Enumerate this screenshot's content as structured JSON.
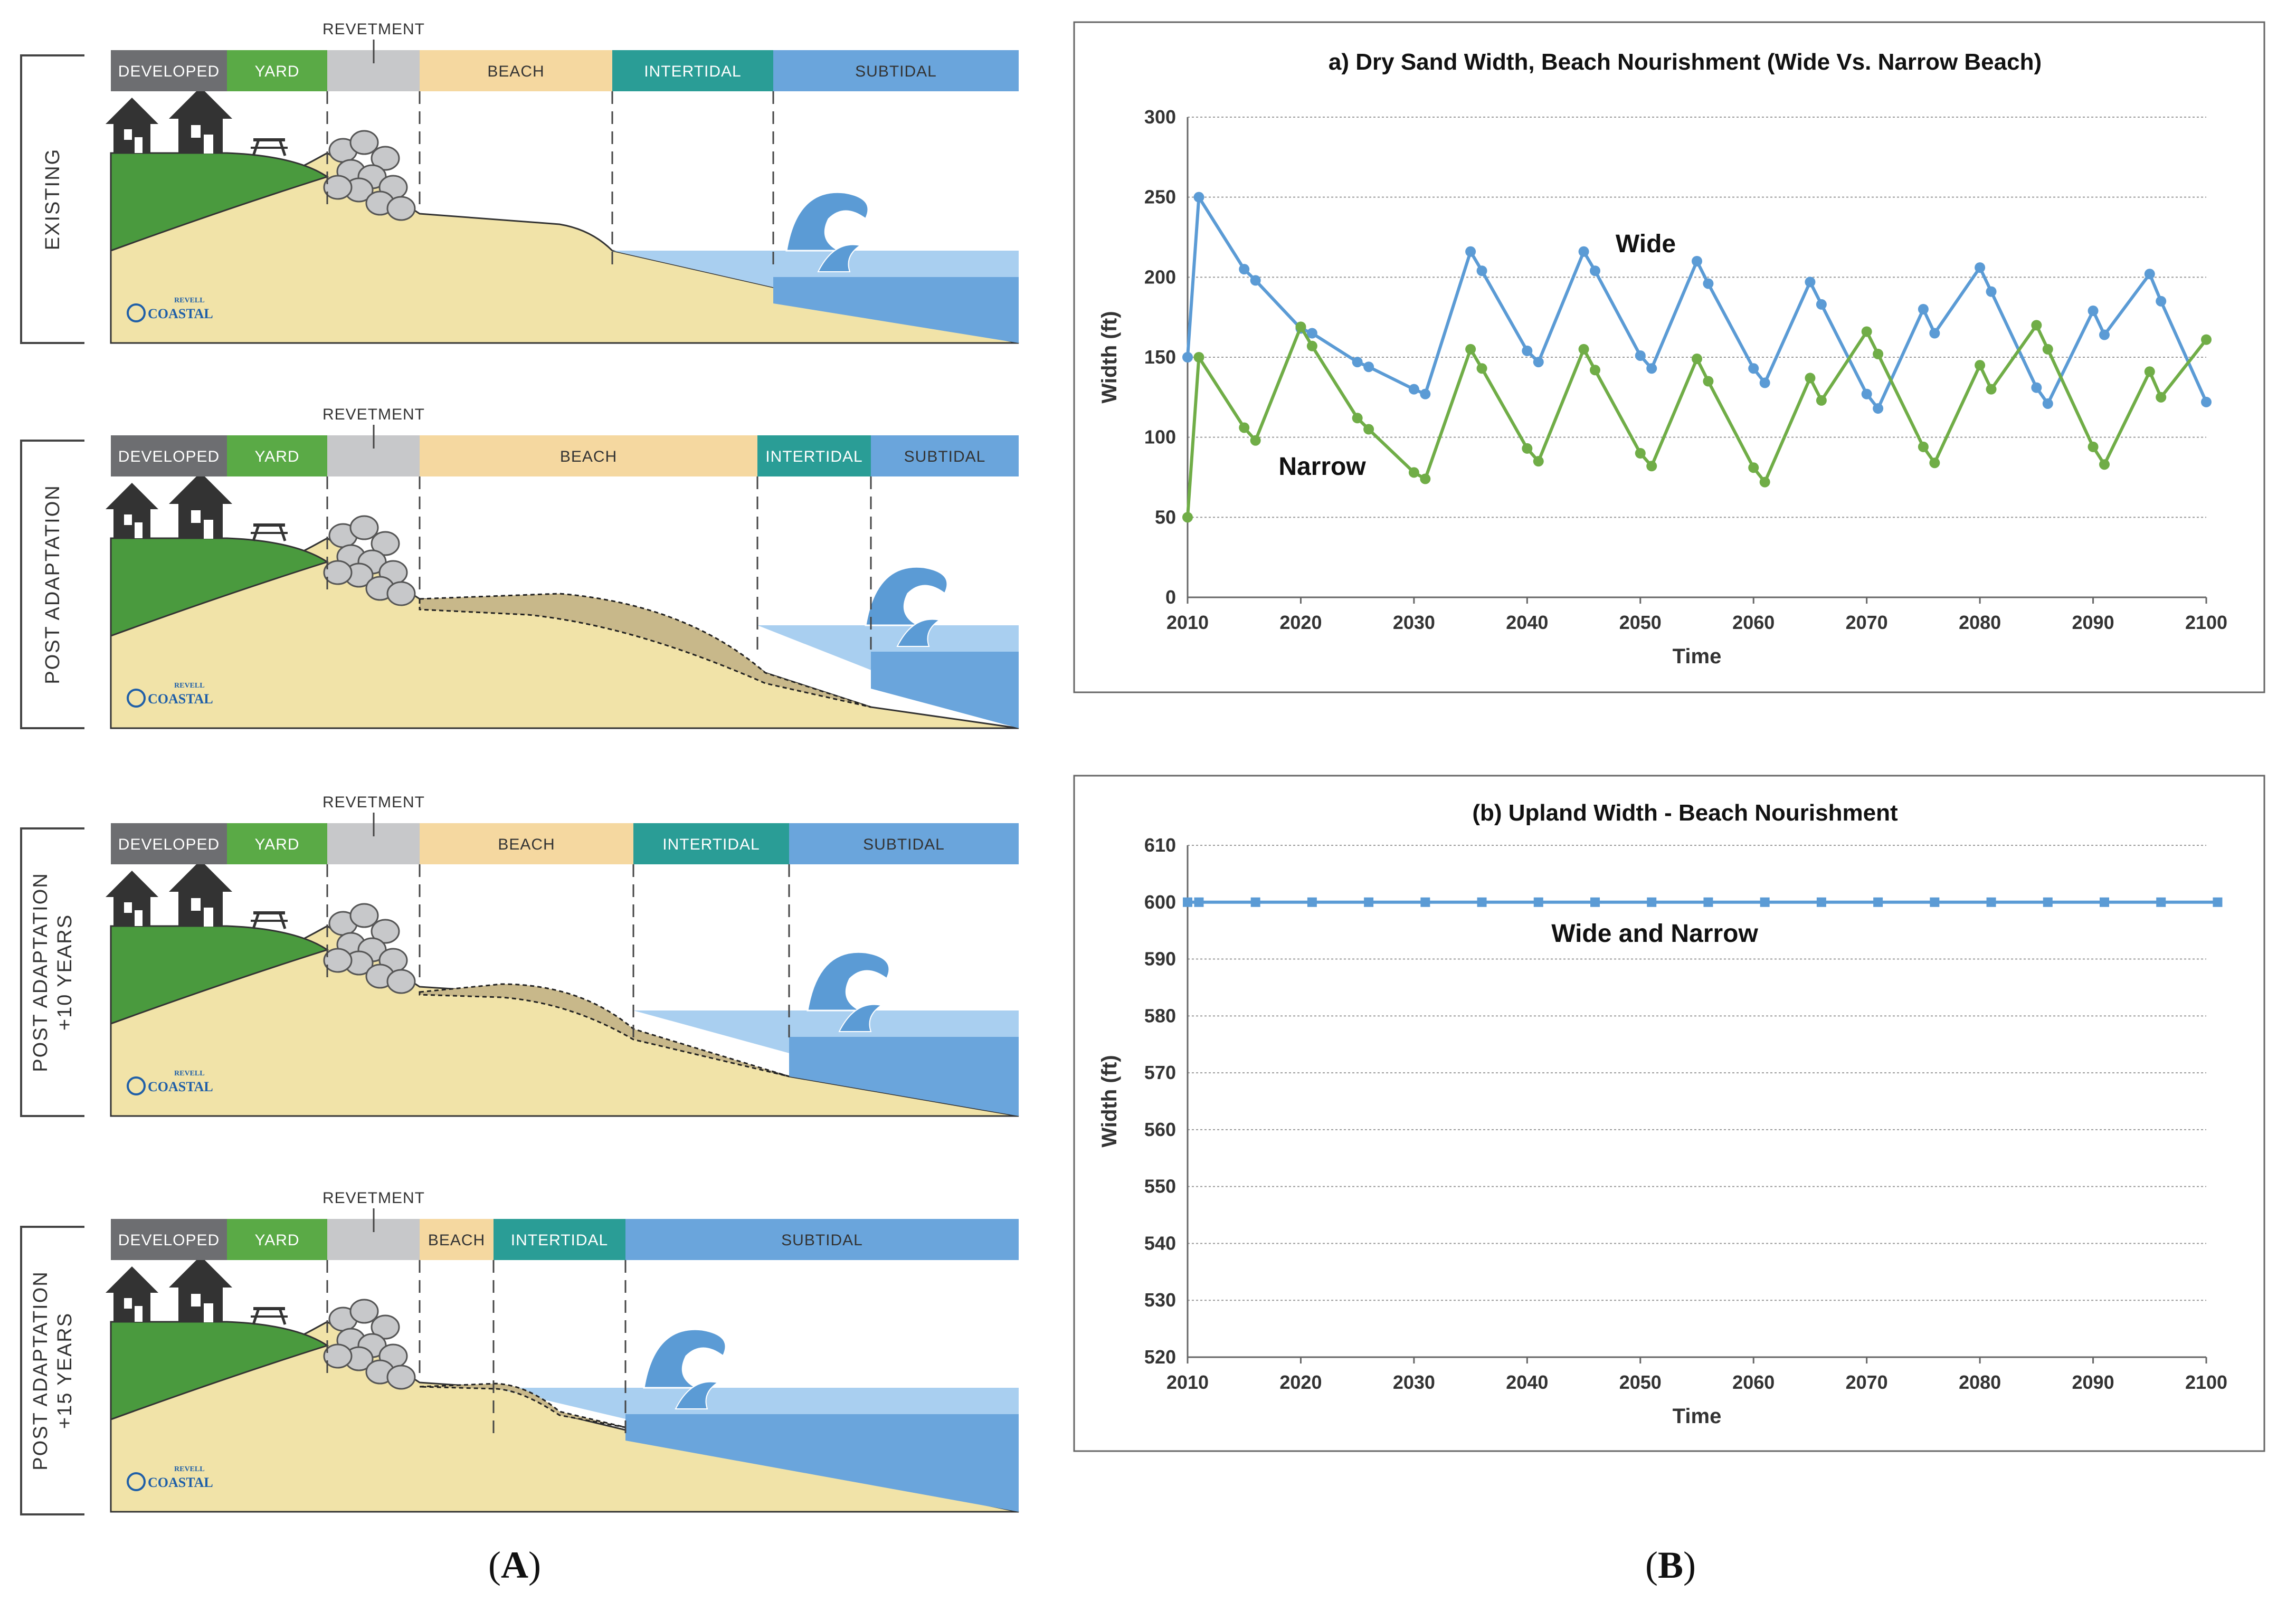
{
  "diagram": {
    "revetment_label": "REVETMENT",
    "logo_text": "COASTAL",
    "logo_small": "REVELL",
    "panels": [
      {
        "side_label": [
          "EXISTING"
        ],
        "zones": [
          {
            "label": "DEVELOPED",
            "color": "#6d6e71"
          },
          {
            "label": "YARD",
            "color": "#5aaa46"
          },
          {
            "label": "",
            "color": "#c7c8ca"
          },
          {
            "label": "BEACH",
            "color": "#f5d8a0"
          },
          {
            "label": "INTERTIDAL",
            "color": "#2a9d96"
          },
          {
            "label": "SUBTIDAL",
            "color": "#6aa5dc"
          }
        ]
      },
      {
        "side_label": [
          "POST ADAPTATION"
        ],
        "zones": [
          {
            "label": "DEVELOPED",
            "color": "#6d6e71"
          },
          {
            "label": "YARD",
            "color": "#5aaa46"
          },
          {
            "label": "",
            "color": "#c7c8ca"
          },
          {
            "label": "BEACH",
            "color": "#f5d8a0"
          },
          {
            "label": "INTERTIDAL",
            "color": "#2a9d96"
          },
          {
            "label": "SUBTIDAL",
            "color": "#6aa5dc"
          }
        ]
      },
      {
        "side_label": [
          "POST ADAPTATION",
          "+10 YEARS"
        ],
        "zones": [
          {
            "label": "DEVELOPED",
            "color": "#6d6e71"
          },
          {
            "label": "YARD",
            "color": "#5aaa46"
          },
          {
            "label": "",
            "color": "#c7c8ca"
          },
          {
            "label": "BEACH",
            "color": "#f5d8a0"
          },
          {
            "label": "INTERTIDAL",
            "color": "#2a9d96"
          },
          {
            "label": "SUBTIDAL",
            "color": "#6aa5dc"
          }
        ]
      },
      {
        "side_label": [
          "POST ADAPTATION",
          "+15 YEARS"
        ],
        "zones": [
          {
            "label": "DEVELOPED",
            "color": "#6d6e71"
          },
          {
            "label": "YARD",
            "color": "#5aaa46"
          },
          {
            "label": "",
            "color": "#c7c8ca"
          },
          {
            "label": "BEACH",
            "color": "#f5d8a0"
          },
          {
            "label": "INTERTIDAL",
            "color": "#2a9d96"
          },
          {
            "label": "SUBTIDAL",
            "color": "#6aa5dc"
          }
        ]
      }
    ],
    "colors": {
      "land": "#4a9a3e",
      "sand": "#f1e3a8",
      "water": "#6aa5dc",
      "water_light": "#a9cff0",
      "house": "#333333"
    }
  },
  "panel_labels": {
    "a": "A",
    "b": "B"
  },
  "chart_data": [
    {
      "type": "line",
      "title": "a) Dry Sand Width, Beach Nourishment (Wide Vs. Narrow Beach)",
      "xlabel": "Time",
      "ylabel": "Width (ft)",
      "xlim": [
        2010,
        2100
      ],
      "ylim": [
        0,
        300
      ],
      "yticks": [
        0,
        50,
        100,
        150,
        200,
        250,
        300
      ],
      "xticks": [
        2010,
        2020,
        2030,
        2040,
        2050,
        2060,
        2070,
        2080,
        2090,
        2100
      ],
      "grid": true,
      "series": [
        {
          "name": "Wide",
          "color": "#5b9bd5",
          "x": [
            2010,
            2011,
            2015,
            2016,
            2020,
            2021,
            2025,
            2026,
            2030,
            2031,
            2035,
            2036,
            2040,
            2041,
            2045,
            2046,
            2050,
            2051,
            2055,
            2056,
            2060,
            2061,
            2065,
            2066,
            2070,
            2071,
            2075,
            2076,
            2080,
            2081,
            2085,
            2086,
            2090,
            2091,
            2095,
            2096,
            2100
          ],
          "y": [
            150,
            250,
            205,
            198,
            168,
            165,
            147,
            144,
            130,
            127,
            216,
            204,
            154,
            147,
            216,
            204,
            151,
            143,
            210,
            196,
            143,
            134,
            197,
            183,
            127,
            118,
            180,
            165,
            206,
            191,
            131,
            121,
            179,
            164,
            202,
            185,
            122
          ]
        },
        {
          "name": "Narrow",
          "color": "#70ad47",
          "x": [
            2010,
            2011,
            2015,
            2016,
            2020,
            2021,
            2025,
            2026,
            2030,
            2031,
            2035,
            2036,
            2040,
            2041,
            2045,
            2046,
            2050,
            2051,
            2055,
            2056,
            2060,
            2061,
            2065,
            2066,
            2070,
            2071,
            2075,
            2076,
            2080,
            2081,
            2085,
            2086,
            2090,
            2091,
            2095,
            2096,
            2100
          ],
          "y": [
            50,
            150,
            106,
            98,
            169,
            157,
            112,
            105,
            78,
            74,
            155,
            143,
            93,
            85,
            155,
            142,
            90,
            82,
            149,
            135,
            81,
            72,
            137,
            123,
            166,
            152,
            94,
            84,
            145,
            130,
            170,
            155,
            94,
            83,
            141,
            125,
            161
          ]
        }
      ],
      "annotations": [
        {
          "text": "Wide"
        },
        {
          "text": "Narrow"
        }
      ]
    },
    {
      "type": "line",
      "title": "(b) Upland Width - Beach Nourishment",
      "xlabel": "Time",
      "ylabel": "Width (ft)",
      "xlim": [
        2010,
        2100
      ],
      "ylim": [
        520,
        610
      ],
      "yticks": [
        520,
        530,
        540,
        550,
        560,
        570,
        580,
        590,
        600,
        610
      ],
      "xticks": [
        2010,
        2020,
        2030,
        2040,
        2050,
        2060,
        2070,
        2080,
        2090,
        2100
      ],
      "grid": true,
      "series": [
        {
          "name": "Wide and Narrow",
          "color": "#5b9bd5",
          "x": [
            2010,
            2011,
            2016,
            2021,
            2026,
            2031,
            2036,
            2041,
            2046,
            2051,
            2056,
            2061,
            2066,
            2071,
            2076,
            2081,
            2086,
            2091,
            2096,
            2101
          ],
          "y": [
            600,
            600,
            600,
            600,
            600,
            600,
            600,
            600,
            600,
            600,
            600,
            600,
            600,
            600,
            600,
            600,
            600,
            600,
            600,
            600
          ]
        }
      ],
      "annotations": [
        {
          "text": "Wide and Narrow"
        }
      ]
    }
  ]
}
